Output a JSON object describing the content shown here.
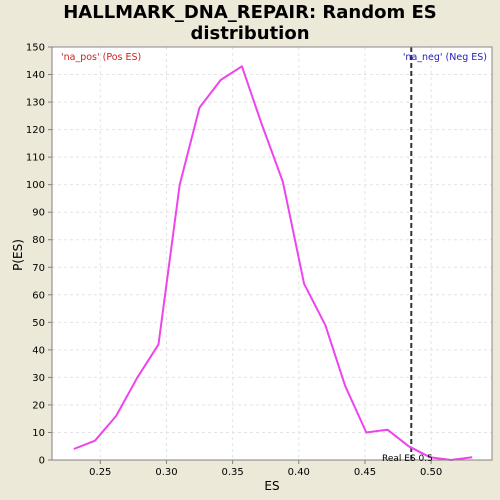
{
  "chart_data": {
    "type": "line",
    "title_lines": [
      "HALLMARK_DNA_REPAIR: Random ES",
      "distribution"
    ],
    "xlabel": "ES",
    "ylabel": "P(ES)",
    "xlim": [
      0.2135,
      0.546
    ],
    "ylim": [
      0,
      150
    ],
    "xticks": [
      0.25,
      0.3,
      0.35,
      0.4,
      0.45,
      0.5
    ],
    "xtick_labels": [
      "0.25",
      "0.30",
      "0.35",
      "0.40",
      "0.45",
      "0.50"
    ],
    "yticks": [
      0,
      10,
      20,
      30,
      40,
      50,
      60,
      70,
      80,
      90,
      100,
      110,
      120,
      130,
      140,
      150
    ],
    "grid": true,
    "series": [
      {
        "color": "#EE44EE",
        "x": [
          0.23,
          0.246,
          0.262,
          0.278,
          0.294,
          0.31,
          0.325,
          0.341,
          0.357,
          0.372,
          0.388,
          0.404,
          0.42,
          0.435,
          0.451,
          0.467,
          0.483,
          0.499,
          0.515,
          0.531
        ],
        "y": [
          4,
          7,
          16,
          30,
          42,
          100,
          128,
          138,
          143,
          122,
          101,
          64,
          49,
          27,
          10,
          11,
          5,
          1,
          0,
          1
        ]
      }
    ],
    "annotations": {
      "pos_label": "'na_pos' (Pos ES)",
      "pos_color": "#CC2222",
      "neg_label": "'na_neg' (Neg ES)",
      "neg_color": "#2222BB",
      "real_es_label": "Real ES 0.5",
      "real_es_value": 0.485
    }
  }
}
